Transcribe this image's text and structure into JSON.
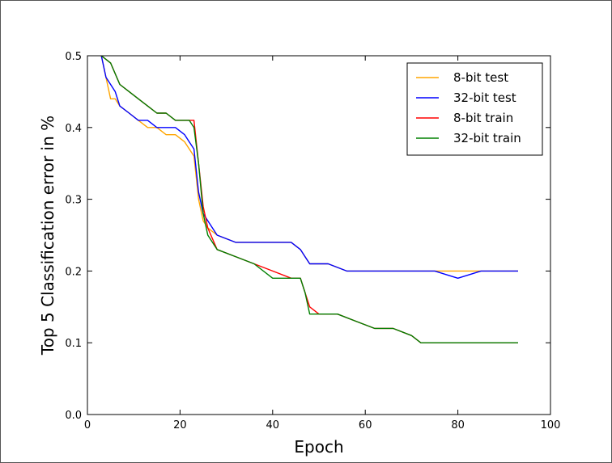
{
  "chart_data": {
    "type": "line",
    "title": "",
    "xlabel": "Epoch",
    "ylabel": "Top 5 Classification error in %",
    "xlim": [
      0,
      100
    ],
    "ylim": [
      0.0,
      0.5
    ],
    "xticks": [
      "0",
      "20",
      "40",
      "60",
      "80",
      "100"
    ],
    "yticks": [
      "0.0",
      "0.1",
      "0.2",
      "0.3",
      "0.4",
      "0.5"
    ],
    "grid": false,
    "legend_position": "top-right",
    "series": [
      {
        "name": "8-bit test",
        "color": "#ffa500",
        "points": [
          [
            3,
            0.5
          ],
          [
            4,
            0.47
          ],
          [
            5,
            0.44
          ],
          [
            6,
            0.44
          ],
          [
            7,
            0.43
          ],
          [
            9,
            0.42
          ],
          [
            11,
            0.41
          ],
          [
            13,
            0.4
          ],
          [
            15,
            0.4
          ],
          [
            17,
            0.39
          ],
          [
            19,
            0.39
          ],
          [
            21,
            0.38
          ],
          [
            22,
            0.37
          ],
          [
            23,
            0.36
          ],
          [
            24,
            0.3
          ],
          [
            25,
            0.27
          ],
          [
            26,
            0.26
          ],
          [
            28,
            0.25
          ],
          [
            32,
            0.24
          ],
          [
            36,
            0.24
          ],
          [
            40,
            0.24
          ],
          [
            44,
            0.24
          ],
          [
            46,
            0.23
          ],
          [
            47,
            0.22
          ],
          [
            48,
            0.21
          ],
          [
            52,
            0.21
          ],
          [
            56,
            0.2
          ],
          [
            60,
            0.2
          ],
          [
            65,
            0.2
          ],
          [
            70,
            0.2
          ],
          [
            75,
            0.2
          ],
          [
            80,
            0.2
          ],
          [
            85,
            0.2
          ],
          [
            90,
            0.2
          ],
          [
            93,
            0.2
          ]
        ]
      },
      {
        "name": "32-bit test",
        "color": "#0000ff",
        "points": [
          [
            3,
            0.5
          ],
          [
            4,
            0.47
          ],
          [
            5,
            0.46
          ],
          [
            6,
            0.45
          ],
          [
            7,
            0.43
          ],
          [
            9,
            0.42
          ],
          [
            11,
            0.41
          ],
          [
            13,
            0.41
          ],
          [
            15,
            0.4
          ],
          [
            17,
            0.4
          ],
          [
            19,
            0.4
          ],
          [
            21,
            0.39
          ],
          [
            22,
            0.38
          ],
          [
            23,
            0.37
          ],
          [
            24,
            0.31
          ],
          [
            25,
            0.28
          ],
          [
            26,
            0.27
          ],
          [
            28,
            0.25
          ],
          [
            32,
            0.24
          ],
          [
            36,
            0.24
          ],
          [
            40,
            0.24
          ],
          [
            44,
            0.24
          ],
          [
            46,
            0.23
          ],
          [
            47,
            0.22
          ],
          [
            48,
            0.21
          ],
          [
            52,
            0.21
          ],
          [
            56,
            0.2
          ],
          [
            60,
            0.2
          ],
          [
            65,
            0.2
          ],
          [
            70,
            0.2
          ],
          [
            75,
            0.2
          ],
          [
            80,
            0.19
          ],
          [
            85,
            0.2
          ],
          [
            90,
            0.2
          ],
          [
            93,
            0.2
          ]
        ]
      },
      {
        "name": "8-bit train",
        "color": "#ff0000",
        "points": [
          [
            3,
            0.5
          ],
          [
            5,
            0.49
          ],
          [
            7,
            0.46
          ],
          [
            9,
            0.45
          ],
          [
            11,
            0.44
          ],
          [
            13,
            0.43
          ],
          [
            15,
            0.42
          ],
          [
            17,
            0.42
          ],
          [
            19,
            0.41
          ],
          [
            21,
            0.41
          ],
          [
            22,
            0.41
          ],
          [
            23,
            0.41
          ],
          [
            24,
            0.35
          ],
          [
            25,
            0.29
          ],
          [
            26,
            0.26
          ],
          [
            28,
            0.23
          ],
          [
            32,
            0.22
          ],
          [
            36,
            0.21
          ],
          [
            40,
            0.2
          ],
          [
            44,
            0.19
          ],
          [
            46,
            0.19
          ],
          [
            47,
            0.17
          ],
          [
            48,
            0.15
          ],
          [
            50,
            0.14
          ],
          [
            54,
            0.14
          ],
          [
            58,
            0.13
          ],
          [
            62,
            0.12
          ],
          [
            66,
            0.12
          ],
          [
            70,
            0.11
          ],
          [
            72,
            0.1
          ],
          [
            76,
            0.1
          ],
          [
            80,
            0.1
          ],
          [
            85,
            0.1
          ],
          [
            90,
            0.1
          ],
          [
            93,
            0.1
          ]
        ]
      },
      {
        "name": "32-bit train",
        "color": "#008000",
        "points": [
          [
            3,
            0.5
          ],
          [
            5,
            0.49
          ],
          [
            7,
            0.46
          ],
          [
            9,
            0.45
          ],
          [
            11,
            0.44
          ],
          [
            13,
            0.43
          ],
          [
            15,
            0.42
          ],
          [
            17,
            0.42
          ],
          [
            19,
            0.41
          ],
          [
            21,
            0.41
          ],
          [
            22,
            0.41
          ],
          [
            23,
            0.4
          ],
          [
            24,
            0.35
          ],
          [
            25,
            0.28
          ],
          [
            26,
            0.25
          ],
          [
            28,
            0.23
          ],
          [
            32,
            0.22
          ],
          [
            36,
            0.21
          ],
          [
            40,
            0.19
          ],
          [
            44,
            0.19
          ],
          [
            46,
            0.19
          ],
          [
            47,
            0.17
          ],
          [
            48,
            0.14
          ],
          [
            50,
            0.14
          ],
          [
            54,
            0.14
          ],
          [
            58,
            0.13
          ],
          [
            62,
            0.12
          ],
          [
            66,
            0.12
          ],
          [
            70,
            0.11
          ],
          [
            72,
            0.1
          ],
          [
            76,
            0.1
          ],
          [
            80,
            0.1
          ],
          [
            85,
            0.1
          ],
          [
            90,
            0.1
          ],
          [
            93,
            0.1
          ]
        ]
      }
    ]
  }
}
